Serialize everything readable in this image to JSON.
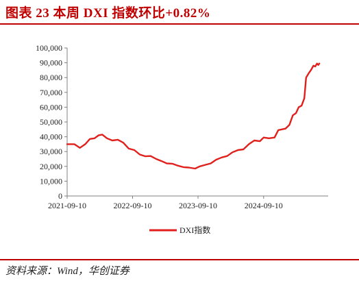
{
  "header": {
    "title": "图表 23   本周 DXI 指数环比+0.82%"
  },
  "footer": {
    "source": "资料来源：Wind，华创证券"
  },
  "chart_data": {
    "type": "line",
    "ylim": [
      0,
      100000
    ],
    "yticks": [
      "0",
      "10,000",
      "20,000",
      "30,000",
      "40,000",
      "50,000",
      "60,000",
      "70,000",
      "80,000",
      "90,000",
      "100,000"
    ],
    "xticks": [
      "2021-09-10",
      "2022-09-10",
      "2023-09-10",
      "2024-09-10"
    ],
    "grid": false,
    "legend_position": "bottom",
    "series": [
      {
        "name": "DXI指数",
        "color": "#e0201c",
        "points": [
          [
            "2021-09-10",
            35000
          ],
          [
            "2021-10-20",
            35000
          ],
          [
            "2021-11-20",
            32500
          ],
          [
            "2021-12-20",
            35000
          ],
          [
            "2022-01-15",
            38500
          ],
          [
            "2022-02-10",
            39000
          ],
          [
            "2022-03-05",
            41000
          ],
          [
            "2022-03-25",
            41500
          ],
          [
            "2022-04-20",
            39000
          ],
          [
            "2022-05-20",
            37500
          ],
          [
            "2022-06-20",
            38000
          ],
          [
            "2022-07-20",
            36000
          ],
          [
            "2022-08-20",
            32000
          ],
          [
            "2022-09-20",
            31000
          ],
          [
            "2022-10-20",
            28000
          ],
          [
            "2022-11-20",
            26800
          ],
          [
            "2022-12-20",
            27000
          ],
          [
            "2023-01-20",
            25000
          ],
          [
            "2023-02-20",
            23500
          ],
          [
            "2023-03-20",
            22000
          ],
          [
            "2023-04-20",
            21800
          ],
          [
            "2023-05-20",
            20500
          ],
          [
            "2023-06-20",
            19500
          ],
          [
            "2023-07-20",
            19200
          ],
          [
            "2023-08-25",
            18500
          ],
          [
            "2023-09-20",
            20000
          ],
          [
            "2023-10-20",
            21000
          ],
          [
            "2023-11-20",
            22000
          ],
          [
            "2023-12-20",
            24500
          ],
          [
            "2024-01-20",
            26000
          ],
          [
            "2024-02-20",
            27000
          ],
          [
            "2024-03-20",
            29500
          ],
          [
            "2024-04-20",
            31000
          ],
          [
            "2024-05-20",
            31500
          ],
          [
            "2024-06-20",
            35000
          ],
          [
            "2024-07-20",
            37500
          ],
          [
            "2024-08-20",
            37000
          ],
          [
            "2024-09-10",
            39500
          ],
          [
            "2024-10-10",
            39000
          ],
          [
            "2024-11-10",
            39500
          ],
          [
            "2024-12-01",
            44500
          ],
          [
            "2025-01-10",
            45500
          ],
          [
            "2025-02-01",
            48000
          ],
          [
            "2025-02-20",
            54500
          ],
          [
            "2025-03-10",
            56000
          ],
          [
            "2025-03-25",
            60000
          ],
          [
            "2025-04-10",
            61000
          ],
          [
            "2025-04-25",
            66000
          ],
          [
            "2025-05-05",
            80000
          ],
          [
            "2025-05-20",
            83000
          ],
          [
            "2025-06-01",
            85000
          ],
          [
            "2025-06-15",
            88000
          ],
          [
            "2025-06-25",
            87500
          ],
          [
            "2025-07-05",
            89500
          ],
          [
            "2025-07-12",
            88500
          ],
          [
            "2025-07-18",
            89500
          ]
        ]
      }
    ]
  }
}
